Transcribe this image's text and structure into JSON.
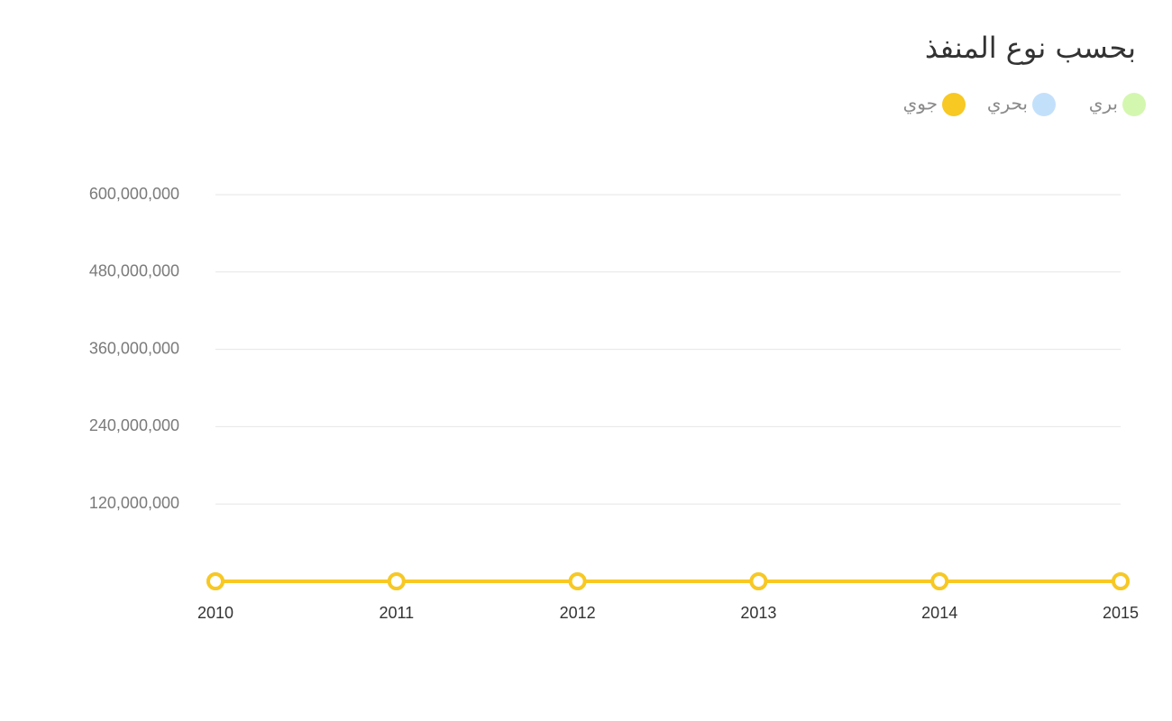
{
  "chart_data": {
    "type": "line",
    "title": "بحسب نوع المنفذ",
    "categories": [
      "2010",
      "2011",
      "2012",
      "2013",
      "2014",
      "2015"
    ],
    "series": [
      {
        "name": "بري",
        "color": "#d4f7b0",
        "values": [
          0,
          0,
          0,
          0,
          0,
          0
        ]
      },
      {
        "name": "بحري",
        "color": "#c3e0fb",
        "values": [
          0,
          0,
          0,
          0,
          0,
          0
        ]
      },
      {
        "name": "جوي",
        "color": "#f8c823",
        "values": [
          0,
          0,
          0,
          0,
          0,
          0
        ]
      }
    ],
    "ylim": [
      0,
      600000000
    ],
    "yticks": [
      {
        "value": 120000000,
        "label": "120,000,000"
      },
      {
        "value": 240000000,
        "label": "240,000,000"
      },
      {
        "value": 360000000,
        "label": "360,000,000"
      },
      {
        "value": 480000000,
        "label": "480,000,000"
      },
      {
        "value": 600000000,
        "label": "600,000,000"
      }
    ],
    "grid": true,
    "legend": "top-right"
  }
}
